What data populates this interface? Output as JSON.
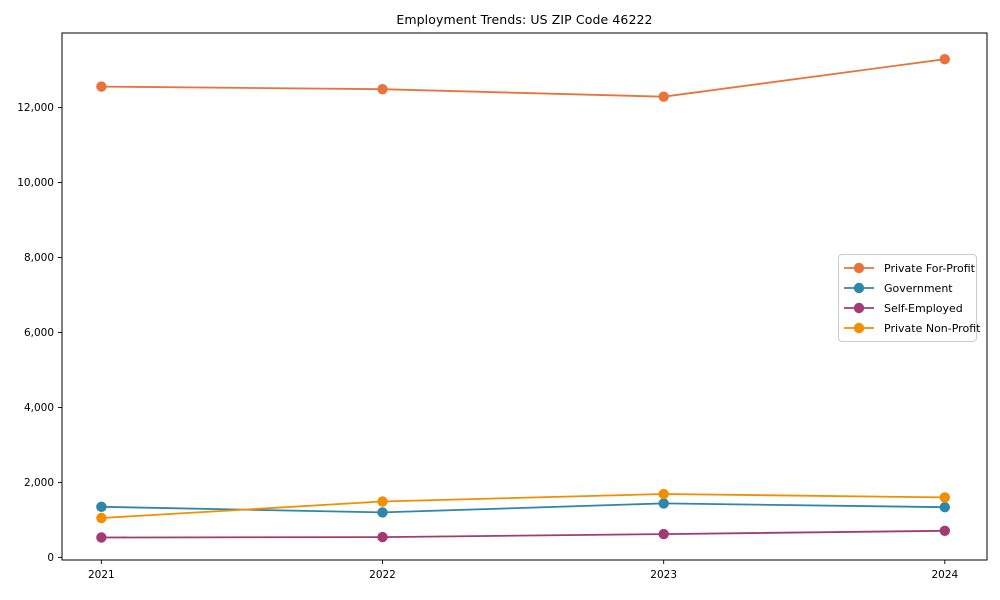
{
  "title": "Employment Trends: US ZIP Code 46222",
  "chart_data": {
    "type": "line",
    "title": "Employment Trends: US ZIP Code 46222",
    "x": [
      2021,
      2022,
      2023,
      2024
    ],
    "xticks": [
      "2021",
      "2022",
      "2023",
      "2024"
    ],
    "yticks": [
      0,
      2000,
      4000,
      6000,
      8000,
      10000,
      12000
    ],
    "ytick_labels": [
      "0",
      "2,000",
      "4,000",
      "6,000",
      "8,000",
      "10,000",
      "12,000"
    ],
    "xlim": [
      2020.86,
      2024.15
    ],
    "ylim": [
      -70,
      13990
    ],
    "grid": false,
    "legend_position": "center-right",
    "marker": "circle",
    "series": [
      {
        "name": "Private For-Profit",
        "color": "#E8743B",
        "values": [
          12560,
          12490,
          12290,
          13290
        ]
      },
      {
        "name": "Government",
        "color": "#2E86AB",
        "values": [
          1350,
          1200,
          1440,
          1340
        ]
      },
      {
        "name": "Self-Employed",
        "color": "#A23B72",
        "values": [
          530,
          540,
          620,
          710
        ]
      },
      {
        "name": "Private Non-Profit",
        "color": "#F18F01",
        "values": [
          1050,
          1490,
          1690,
          1600
        ]
      }
    ]
  }
}
